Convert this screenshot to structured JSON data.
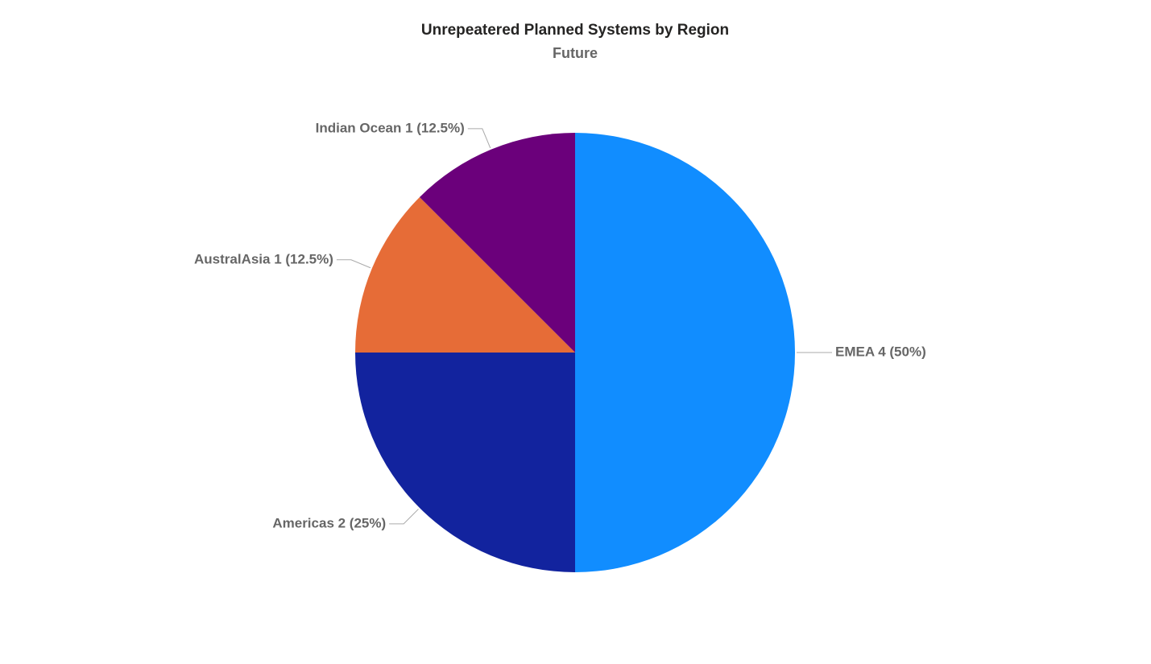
{
  "chart_data": {
    "type": "pie",
    "title": "Unrepeatered Planned Systems by Region",
    "subtitle": "Future",
    "values": [
      4,
      2,
      1,
      1
    ],
    "value_labels": [
      "EMEA 4 (50%)",
      "Americas 2 (25%)",
      "AustralAsia 1 (12.5%)",
      "Indian Ocean 1 (12.5%)"
    ],
    "colors": [
      "#118dff",
      "#12239e",
      "#e66c37",
      "#6b007b"
    ]
  }
}
